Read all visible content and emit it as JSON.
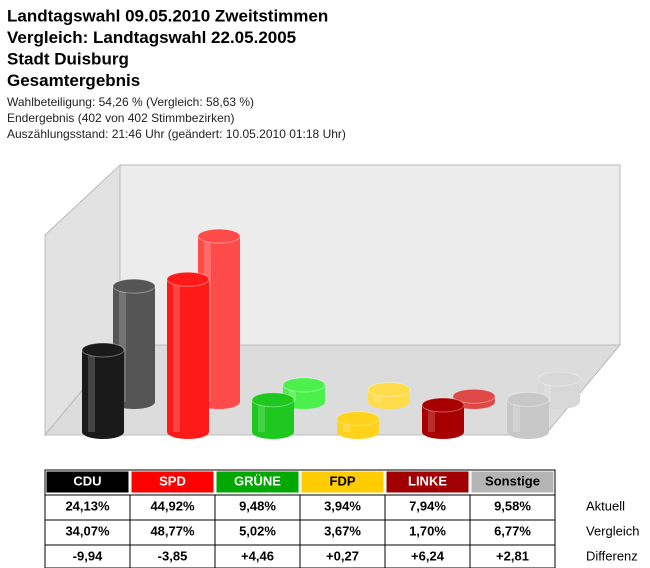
{
  "chart_data": {
    "type": "cylinder3d",
    "title_lines": [
      "Landtagswahl 09.05.2010 Zweitstimmen",
      "Vergleich: Landtagswahl 22.05.2005",
      "Stadt Duisburg",
      "Gesamtergebnis"
    ],
    "info_lines": [
      "Wahlbeteiligung: 54,26 % (Vergleich: 58,63 %)",
      "Endergebnis (402 von 402 Stimmbezirken)",
      "Auszählungsstand: 21:46 Uhr (geändert: 10.05.2010 01:18 Uhr)"
    ],
    "categories": [
      "CDU",
      "SPD",
      "GRÜNE",
      "FDP",
      "LINKE",
      "Sonstige"
    ],
    "category_colors": [
      "#000000",
      "#ff0000",
      "#00a800",
      "#ffcc00",
      "#a00000",
      "#b4b4b4"
    ],
    "header_text_colors": [
      "#ffffff",
      "#ffffff",
      "#ffffff",
      "#000000",
      "#ffffff",
      "#000000"
    ],
    "series": [
      {
        "name": "Aktuell",
        "colors": [
          "#1a1a1a",
          "#ff1a1a",
          "#1ec81e",
          "#ffd21e",
          "#a80000",
          "#c8c8c8"
        ],
        "values": [
          24.13,
          44.92,
          9.48,
          3.94,
          7.94,
          9.58
        ],
        "value_labels": [
          "24,13%",
          "44,92%",
          "9,48%",
          "3,94%",
          "7,94%",
          "9,58%"
        ]
      },
      {
        "name": "Vergleich",
        "colors": [
          "#555555",
          "#ff4a4a",
          "#4cf04c",
          "#ffdc4a",
          "#e04848",
          "#d8d8d8"
        ],
        "values": [
          34.07,
          48.77,
          5.02,
          3.67,
          1.7,
          6.77
        ],
        "value_labels": [
          "34,07%",
          "48,77%",
          "5,02%",
          "3,67%",
          "1,70%",
          "6,77%"
        ]
      }
    ],
    "differences": {
      "name": "Differenz",
      "values": [
        -9.94,
        -3.85,
        4.46,
        0.27,
        6.24,
        2.81
      ],
      "value_labels": [
        "-9,94",
        "-3,85",
        "+4,46",
        "+0,27",
        "+6,24",
        "+2,81"
      ]
    }
  }
}
